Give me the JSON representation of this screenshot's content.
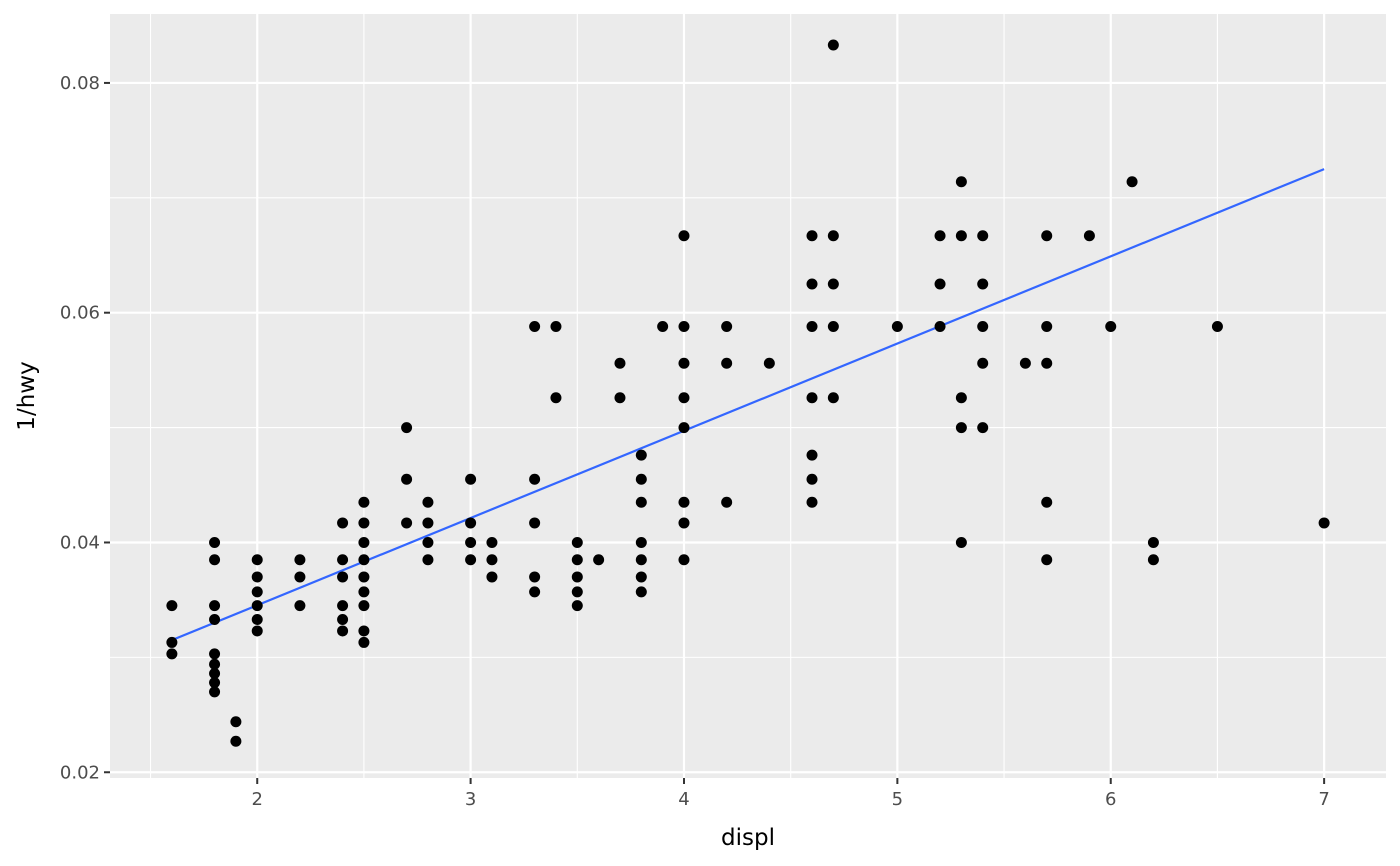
{
  "chart_data": {
    "type": "scatter",
    "title": "",
    "xlabel": "displ",
    "ylabel": "1/hwy",
    "xlim": [
      1.31,
      7.29
    ],
    "ylim": [
      0.0195,
      0.086
    ],
    "x_ticks": [
      2,
      3,
      4,
      5,
      6,
      7
    ],
    "x_tick_labels": [
      "2",
      "3",
      "4",
      "5",
      "6",
      "7"
    ],
    "y_ticks": [
      0.02,
      0.04,
      0.06,
      0.08
    ],
    "y_tick_labels": [
      "0.02",
      "0.04",
      "0.06",
      "0.08"
    ],
    "x_minor_ticks": [
      1.5,
      2.5,
      3.5,
      4.5,
      5.5,
      6.5
    ],
    "y_minor_ticks": [
      0.03,
      0.05,
      0.07
    ],
    "grid": true,
    "legend": "none",
    "colors": {
      "panel": "#ebebeb",
      "grid": "#ffffff",
      "points": "#000000",
      "fit_line": "#3366ff",
      "tick_label": "#4d4d4d",
      "axis_title": "#000000"
    },
    "fit_line": {
      "x": [
        1.6,
        7.0
      ],
      "y": [
        0.0315,
        0.0725
      ]
    },
    "points": [
      {
        "x": 1.6,
        "y": 0.0345
      },
      {
        "x": 1.6,
        "y": 0.0313
      },
      {
        "x": 1.6,
        "y": 0.0303
      },
      {
        "x": 1.8,
        "y": 0.04
      },
      {
        "x": 1.8,
        "y": 0.0385
      },
      {
        "x": 1.8,
        "y": 0.0345
      },
      {
        "x": 1.8,
        "y": 0.0333
      },
      {
        "x": 1.8,
        "y": 0.0303
      },
      {
        "x": 1.8,
        "y": 0.0294
      },
      {
        "x": 1.8,
        "y": 0.0286
      },
      {
        "x": 1.8,
        "y": 0.0278
      },
      {
        "x": 1.8,
        "y": 0.027
      },
      {
        "x": 1.9,
        "y": 0.0244
      },
      {
        "x": 1.9,
        "y": 0.0227
      },
      {
        "x": 2.0,
        "y": 0.0385
      },
      {
        "x": 2.0,
        "y": 0.037
      },
      {
        "x": 2.0,
        "y": 0.0357
      },
      {
        "x": 2.0,
        "y": 0.0345
      },
      {
        "x": 2.0,
        "y": 0.0333
      },
      {
        "x": 2.0,
        "y": 0.0323
      },
      {
        "x": 2.2,
        "y": 0.0385
      },
      {
        "x": 2.2,
        "y": 0.037
      },
      {
        "x": 2.2,
        "y": 0.0345
      },
      {
        "x": 2.4,
        "y": 0.0417
      },
      {
        "x": 2.4,
        "y": 0.0385
      },
      {
        "x": 2.4,
        "y": 0.037
      },
      {
        "x": 2.4,
        "y": 0.0345
      },
      {
        "x": 2.4,
        "y": 0.0333
      },
      {
        "x": 2.4,
        "y": 0.0323
      },
      {
        "x": 2.5,
        "y": 0.0435
      },
      {
        "x": 2.5,
        "y": 0.0417
      },
      {
        "x": 2.5,
        "y": 0.04
      },
      {
        "x": 2.5,
        "y": 0.0385
      },
      {
        "x": 2.5,
        "y": 0.037
      },
      {
        "x": 2.5,
        "y": 0.0357
      },
      {
        "x": 2.5,
        "y": 0.0345
      },
      {
        "x": 2.5,
        "y": 0.0323
      },
      {
        "x": 2.5,
        "y": 0.0313
      },
      {
        "x": 2.7,
        "y": 0.05
      },
      {
        "x": 2.7,
        "y": 0.0455
      },
      {
        "x": 2.7,
        "y": 0.0417
      },
      {
        "x": 2.8,
        "y": 0.0435
      },
      {
        "x": 2.8,
        "y": 0.0417
      },
      {
        "x": 2.8,
        "y": 0.04
      },
      {
        "x": 2.8,
        "y": 0.0385
      },
      {
        "x": 3.0,
        "y": 0.0455
      },
      {
        "x": 3.0,
        "y": 0.0417
      },
      {
        "x": 3.0,
        "y": 0.04
      },
      {
        "x": 3.0,
        "y": 0.0385
      },
      {
        "x": 3.1,
        "y": 0.04
      },
      {
        "x": 3.1,
        "y": 0.0385
      },
      {
        "x": 3.1,
        "y": 0.037
      },
      {
        "x": 3.3,
        "y": 0.0588
      },
      {
        "x": 3.3,
        "y": 0.0455
      },
      {
        "x": 3.3,
        "y": 0.0417
      },
      {
        "x": 3.3,
        "y": 0.037
      },
      {
        "x": 3.3,
        "y": 0.0357
      },
      {
        "x": 3.4,
        "y": 0.0588
      },
      {
        "x": 3.4,
        "y": 0.0526
      },
      {
        "x": 3.5,
        "y": 0.04
      },
      {
        "x": 3.5,
        "y": 0.0385
      },
      {
        "x": 3.5,
        "y": 0.037
      },
      {
        "x": 3.5,
        "y": 0.0357
      },
      {
        "x": 3.5,
        "y": 0.0345
      },
      {
        "x": 3.6,
        "y": 0.0385
      },
      {
        "x": 3.7,
        "y": 0.0556
      },
      {
        "x": 3.7,
        "y": 0.0526
      },
      {
        "x": 3.8,
        "y": 0.0476
      },
      {
        "x": 3.8,
        "y": 0.0455
      },
      {
        "x": 3.8,
        "y": 0.0435
      },
      {
        "x": 3.8,
        "y": 0.04
      },
      {
        "x": 3.8,
        "y": 0.0385
      },
      {
        "x": 3.8,
        "y": 0.037
      },
      {
        "x": 3.8,
        "y": 0.0357
      },
      {
        "x": 3.9,
        "y": 0.0588
      },
      {
        "x": 4.0,
        "y": 0.0667
      },
      {
        "x": 4.0,
        "y": 0.0588
      },
      {
        "x": 4.0,
        "y": 0.0556
      },
      {
        "x": 4.0,
        "y": 0.0526
      },
      {
        "x": 4.0,
        "y": 0.05
      },
      {
        "x": 4.0,
        "y": 0.0435
      },
      {
        "x": 4.0,
        "y": 0.0417
      },
      {
        "x": 4.0,
        "y": 0.0385
      },
      {
        "x": 4.2,
        "y": 0.0588
      },
      {
        "x": 4.2,
        "y": 0.0556
      },
      {
        "x": 4.2,
        "y": 0.0435
      },
      {
        "x": 4.4,
        "y": 0.0556
      },
      {
        "x": 4.6,
        "y": 0.0667
      },
      {
        "x": 4.6,
        "y": 0.0625
      },
      {
        "x": 4.6,
        "y": 0.0588
      },
      {
        "x": 4.6,
        "y": 0.0526
      },
      {
        "x": 4.6,
        "y": 0.0476
      },
      {
        "x": 4.6,
        "y": 0.0455
      },
      {
        "x": 4.6,
        "y": 0.0435
      },
      {
        "x": 4.7,
        "y": 0.0833
      },
      {
        "x": 4.7,
        "y": 0.0667
      },
      {
        "x": 4.7,
        "y": 0.0625
      },
      {
        "x": 4.7,
        "y": 0.0588
      },
      {
        "x": 4.7,
        "y": 0.0526
      },
      {
        "x": 5.0,
        "y": 0.0588
      },
      {
        "x": 5.2,
        "y": 0.0667
      },
      {
        "x": 5.2,
        "y": 0.0625
      },
      {
        "x": 5.2,
        "y": 0.0588
      },
      {
        "x": 5.3,
        "y": 0.0714
      },
      {
        "x": 5.3,
        "y": 0.0667
      },
      {
        "x": 5.3,
        "y": 0.0526
      },
      {
        "x": 5.3,
        "y": 0.05
      },
      {
        "x": 5.3,
        "y": 0.04
      },
      {
        "x": 5.4,
        "y": 0.0667
      },
      {
        "x": 5.4,
        "y": 0.0625
      },
      {
        "x": 5.4,
        "y": 0.0588
      },
      {
        "x": 5.4,
        "y": 0.0556
      },
      {
        "x": 5.4,
        "y": 0.05
      },
      {
        "x": 5.6,
        "y": 0.0556
      },
      {
        "x": 5.7,
        "y": 0.0667
      },
      {
        "x": 5.7,
        "y": 0.0588
      },
      {
        "x": 5.7,
        "y": 0.0556
      },
      {
        "x": 5.7,
        "y": 0.0435
      },
      {
        "x": 5.7,
        "y": 0.0385
      },
      {
        "x": 5.9,
        "y": 0.0667
      },
      {
        "x": 6.0,
        "y": 0.0588
      },
      {
        "x": 6.1,
        "y": 0.0714
      },
      {
        "x": 6.2,
        "y": 0.04
      },
      {
        "x": 6.2,
        "y": 0.0385
      },
      {
        "x": 6.5,
        "y": 0.0588
      },
      {
        "x": 7.0,
        "y": 0.0417
      }
    ]
  }
}
